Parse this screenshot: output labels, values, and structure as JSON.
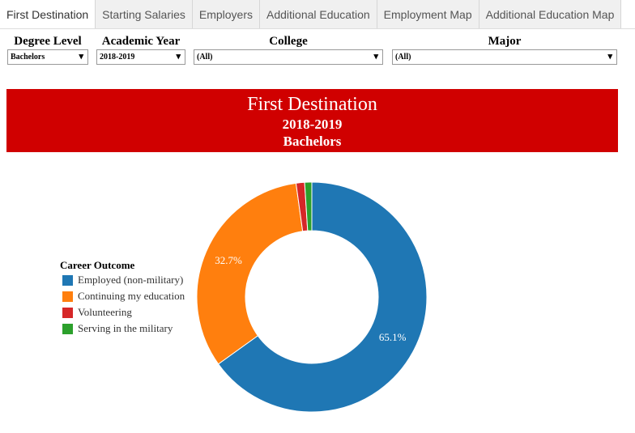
{
  "tabs": [
    "First Destination",
    "Starting Salaries",
    "Employers",
    "Additional Education",
    "Employment Map",
    "Additional Education Map"
  ],
  "filters": [
    {
      "label": "Degree Level",
      "value": "Bachelors"
    },
    {
      "label": "Academic Year",
      "value": "2018-2019"
    },
    {
      "label": "College",
      "value": "(All)"
    },
    {
      "label": "Major",
      "value": "(All)"
    }
  ],
  "chart_data": {
    "type": "donut",
    "title": "First Destination",
    "subtitles": [
      "2018-2019",
      "Bachelors"
    ],
    "legend_title": "Career Outcome",
    "categories": [
      "Employed (non-military)",
      "Continuing my education",
      "Volunteering",
      "Serving in the military"
    ],
    "values": [
      65.1,
      32.7,
      1.2,
      1.0
    ],
    "value_labels": [
      "65.1%",
      "32.7%",
      null,
      null
    ],
    "colors": [
      "#1f77b4",
      "#ff7f0e",
      "#d62728",
      "#2ca02c"
    ],
    "legend": "left"
  }
}
